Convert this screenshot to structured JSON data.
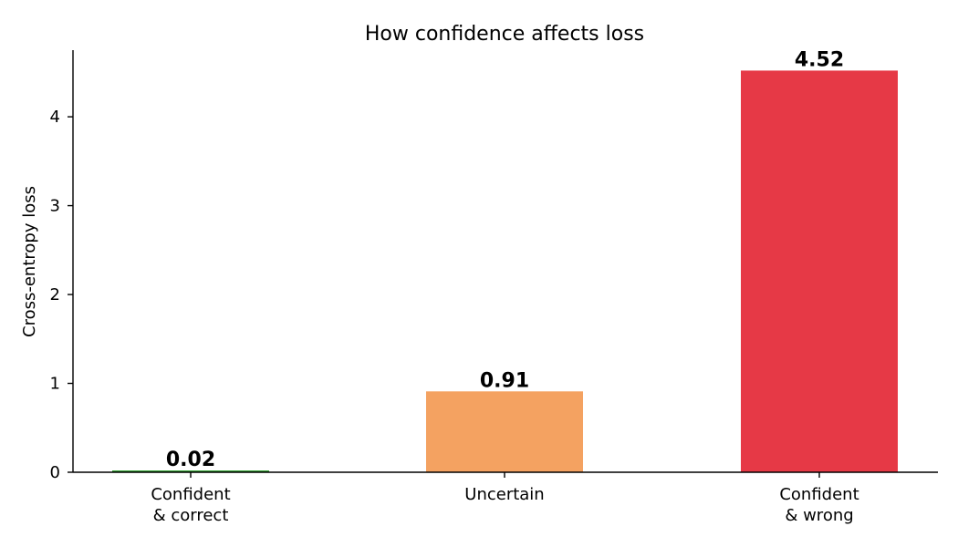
{
  "chart_data": {
    "type": "bar",
    "title": "How confidence affects loss",
    "xlabel": "",
    "ylabel": "Cross-entropy loss",
    "categories": [
      [
        "Confident",
        "& correct"
      ],
      [
        "Uncertain"
      ],
      [
        "Confident",
        "& wrong"
      ]
    ],
    "values": [
      0.02,
      0.91,
      4.52
    ],
    "value_labels": [
      "0.02",
      "0.91",
      "4.52"
    ],
    "colors": [
      "#2ca02c",
      "#f4a261",
      "#e63946"
    ],
    "ylim": [
      0,
      4.75
    ],
    "yticks": [
      0,
      1,
      2,
      3,
      4
    ],
    "grid": false,
    "legend": "none"
  }
}
